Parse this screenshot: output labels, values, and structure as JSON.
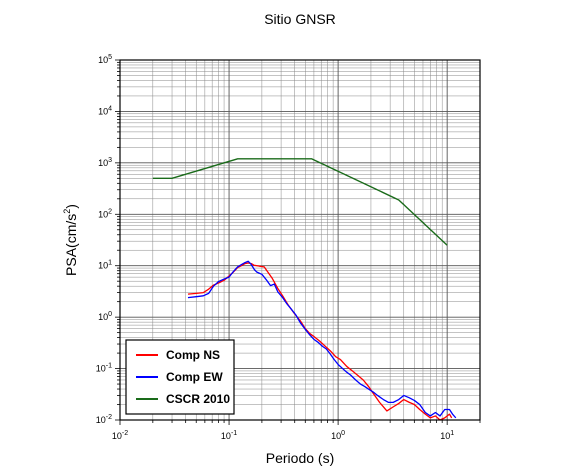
{
  "chart_data": {
    "type": "line",
    "title": "Sitio GNSR",
    "xlabel": "Periodo (s)",
    "ylabel": "PSA(cm/s²)",
    "ylabel_parts": {
      "main": "PSA(cm/s",
      "sup": "2",
      "close": ")"
    },
    "x_scale": "log",
    "y_scale": "log",
    "xlim": [
      0.01,
      20
    ],
    "ylim": [
      0.01,
      100000
    ],
    "x_ticks": [
      {
        "base": "10",
        "exp": "-2"
      },
      {
        "base": "10",
        "exp": "-1"
      },
      {
        "base": "10",
        "exp": "0"
      },
      {
        "base": "10",
        "exp": "1"
      }
    ],
    "y_ticks": [
      {
        "base": "10",
        "exp": "-2"
      },
      {
        "base": "10",
        "exp": "-1"
      },
      {
        "base": "10",
        "exp": "0"
      },
      {
        "base": "10",
        "exp": "1"
      },
      {
        "base": "10",
        "exp": "2"
      },
      {
        "base": "10",
        "exp": "3"
      },
      {
        "base": "10",
        "exp": "4"
      },
      {
        "base": "10",
        "exp": "5"
      }
    ],
    "grid": true,
    "legend_position": "bottom-left",
    "series": [
      {
        "name": "Comp NS",
        "color": "#ff0000",
        "points": [
          [
            0.042,
            2.8
          ],
          [
            0.05,
            2.9
          ],
          [
            0.058,
            3.0
          ],
          [
            0.065,
            3.5
          ],
          [
            0.072,
            4.2
          ],
          [
            0.08,
            4.6
          ],
          [
            0.09,
            5.2
          ],
          [
            0.1,
            6.3
          ],
          [
            0.11,
            7.6
          ],
          [
            0.12,
            9.2
          ],
          [
            0.13,
            10.0
          ],
          [
            0.14,
            11.0
          ],
          [
            0.15,
            11.3
          ],
          [
            0.16,
            11.0
          ],
          [
            0.17,
            10.2
          ],
          [
            0.19,
            9.8
          ],
          [
            0.21,
            9.5
          ],
          [
            0.23,
            7.2
          ],
          [
            0.25,
            5.6
          ],
          [
            0.28,
            3.6
          ],
          [
            0.31,
            2.6
          ],
          [
            0.35,
            1.7
          ],
          [
            0.4,
            1.15
          ],
          [
            0.45,
            0.85
          ],
          [
            0.5,
            0.6
          ],
          [
            0.55,
            0.48
          ],
          [
            0.6,
            0.42
          ],
          [
            0.68,
            0.34
          ],
          [
            0.75,
            0.28
          ],
          [
            0.85,
            0.22
          ],
          [
            0.95,
            0.17
          ],
          [
            1.05,
            0.15
          ],
          [
            1.2,
            0.11
          ],
          [
            1.35,
            0.09
          ],
          [
            1.5,
            0.075
          ],
          [
            1.7,
            0.06
          ],
          [
            1.9,
            0.045
          ],
          [
            2.1,
            0.033
          ],
          [
            2.4,
            0.022
          ],
          [
            2.8,
            0.015
          ],
          [
            3.2,
            0.018
          ],
          [
            3.6,
            0.021
          ],
          [
            4.0,
            0.025
          ],
          [
            4.5,
            0.022
          ],
          [
            5.0,
            0.02
          ],
          [
            5.6,
            0.016
          ],
          [
            6.3,
            0.013
          ],
          [
            7.0,
            0.011
          ],
          [
            7.8,
            0.012
          ],
          [
            8.6,
            0.01
          ],
          [
            9.5,
            0.011
          ],
          [
            10.5,
            0.013
          ],
          [
            11.0,
            0.011
          ]
        ]
      },
      {
        "name": "Comp EW",
        "color": "#0000ff",
        "points": [
          [
            0.042,
            2.4
          ],
          [
            0.05,
            2.5
          ],
          [
            0.058,
            2.6
          ],
          [
            0.065,
            2.9
          ],
          [
            0.072,
            4.0
          ],
          [
            0.08,
            4.9
          ],
          [
            0.09,
            5.5
          ],
          [
            0.1,
            6.0
          ],
          [
            0.11,
            7.8
          ],
          [
            0.12,
            9.5
          ],
          [
            0.13,
            10.5
          ],
          [
            0.14,
            11.5
          ],
          [
            0.15,
            12.2
          ],
          [
            0.16,
            10.5
          ],
          [
            0.17,
            8.5
          ],
          [
            0.18,
            7.5
          ],
          [
            0.2,
            6.8
          ],
          [
            0.22,
            5.3
          ],
          [
            0.24,
            4.1
          ],
          [
            0.26,
            4.4
          ],
          [
            0.28,
            3.1
          ],
          [
            0.31,
            2.4
          ],
          [
            0.34,
            1.8
          ],
          [
            0.37,
            1.45
          ],
          [
            0.41,
            1.1
          ],
          [
            0.45,
            0.78
          ],
          [
            0.5,
            0.58
          ],
          [
            0.55,
            0.45
          ],
          [
            0.6,
            0.37
          ],
          [
            0.66,
            0.32
          ],
          [
            0.72,
            0.27
          ],
          [
            0.78,
            0.24
          ],
          [
            0.85,
            0.19
          ],
          [
            0.92,
            0.15
          ],
          [
            1.0,
            0.12
          ],
          [
            1.1,
            0.1
          ],
          [
            1.2,
            0.085
          ],
          [
            1.3,
            0.075
          ],
          [
            1.45,
            0.06
          ],
          [
            1.6,
            0.05
          ],
          [
            1.75,
            0.045
          ],
          [
            1.9,
            0.04
          ],
          [
            2.1,
            0.035
          ],
          [
            2.3,
            0.03
          ],
          [
            2.6,
            0.025
          ],
          [
            2.9,
            0.022
          ],
          [
            3.2,
            0.022
          ],
          [
            3.6,
            0.025
          ],
          [
            4.0,
            0.03
          ],
          [
            4.5,
            0.027
          ],
          [
            5.0,
            0.024
          ],
          [
            5.6,
            0.02
          ],
          [
            6.3,
            0.014
          ],
          [
            7.0,
            0.012
          ],
          [
            7.8,
            0.014
          ],
          [
            8.6,
            0.012
          ],
          [
            9.5,
            0.016
          ],
          [
            10.5,
            0.016
          ],
          [
            11.2,
            0.013
          ],
          [
            12.0,
            0.011
          ]
        ]
      },
      {
        "name": "CSCR 2010",
        "color": "#1a6b1a",
        "points": [
          [
            0.02,
            500
          ],
          [
            0.03,
            500
          ],
          [
            0.12,
            1200
          ],
          [
            0.57,
            1200
          ],
          [
            3.6,
            190
          ],
          [
            10.0,
            25
          ]
        ]
      }
    ]
  }
}
